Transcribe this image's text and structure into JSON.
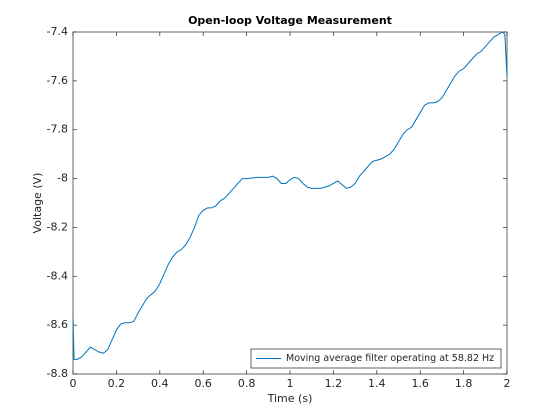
{
  "chart_data": {
    "type": "line",
    "title": "Open-loop Voltage Measurement",
    "xlabel": "Time (s)",
    "ylabel": "Voltage (V)",
    "xlim": [
      0,
      2
    ],
    "xticks": [
      0,
      0.2,
      0.4,
      0.6,
      0.8,
      1,
      1.2,
      1.4,
      1.6,
      1.8,
      2
    ],
    "ylim": [
      -8.8,
      -7.4
    ],
    "yticks": [
      -8.8,
      -8.6,
      -8.4,
      -8.2,
      -8,
      -7.8,
      -7.6,
      -7.4
    ],
    "legend": "southeast",
    "grid": false,
    "x": [
      0,
      0.005,
      0.02,
      0.04,
      0.06,
      0.08,
      0.1,
      0.12,
      0.14,
      0.16,
      0.18,
      0.2,
      0.22,
      0.24,
      0.26,
      0.28,
      0.3,
      0.32,
      0.34,
      0.36,
      0.38,
      0.4,
      0.42,
      0.44,
      0.46,
      0.48,
      0.5,
      0.52,
      0.54,
      0.56,
      0.58,
      0.6,
      0.62,
      0.64,
      0.66,
      0.68,
      0.7,
      0.72,
      0.74,
      0.76,
      0.78,
      0.8,
      0.85,
      0.9,
      0.92,
      0.94,
      0.96,
      0.98,
      1,
      1.02,
      1.04,
      1.06,
      1.08,
      1.1,
      1.14,
      1.18,
      1.2,
      1.22,
      1.24,
      1.26,
      1.28,
      1.3,
      1.32,
      1.34,
      1.36,
      1.38,
      1.4,
      1.42,
      1.44,
      1.46,
      1.48,
      1.5,
      1.52,
      1.54,
      1.56,
      1.58,
      1.6,
      1.62,
      1.64,
      1.66,
      1.68,
      1.7,
      1.72,
      1.74,
      1.76,
      1.78,
      1.8,
      1.82,
      1.84,
      1.86,
      1.88,
      1.9,
      1.92,
      1.94,
      1.96,
      1.98,
      1.99,
      2
    ],
    "series": [
      {
        "name": "Moving average filter operating at 58.82 Hz",
        "color": "#0072bd",
        "values": [
          -8.57,
          -8.74,
          -8.74,
          -8.73,
          -8.71,
          -8.69,
          -8.7,
          -8.71,
          -8.715,
          -8.7,
          -8.66,
          -8.62,
          -8.595,
          -8.59,
          -8.59,
          -8.585,
          -8.55,
          -8.52,
          -8.49,
          -8.475,
          -8.46,
          -8.43,
          -8.39,
          -8.35,
          -8.32,
          -8.3,
          -8.29,
          -8.27,
          -8.24,
          -8.2,
          -8.15,
          -8.13,
          -8.12,
          -8.12,
          -8.11,
          -8.09,
          -8.08,
          -8.06,
          -8.04,
          -8.02,
          -8,
          -8,
          -7.995,
          -7.995,
          -7.99,
          -8,
          -8.02,
          -8.02,
          -8.005,
          -7.995,
          -8,
          -8.02,
          -8.035,
          -8.04,
          -8.04,
          -8.03,
          -8.02,
          -8.01,
          -8.025,
          -8.04,
          -8.035,
          -8.02,
          -7.99,
          -7.97,
          -7.95,
          -7.93,
          -7.925,
          -7.92,
          -7.91,
          -7.9,
          -7.88,
          -7.85,
          -7.82,
          -7.8,
          -7.79,
          -7.76,
          -7.73,
          -7.7,
          -7.69,
          -7.69,
          -7.685,
          -7.67,
          -7.64,
          -7.61,
          -7.58,
          -7.56,
          -7.55,
          -7.53,
          -7.51,
          -7.49,
          -7.48,
          -7.46,
          -7.44,
          -7.42,
          -7.41,
          -7.4,
          -7.41,
          -7.58
        ]
      }
    ]
  }
}
